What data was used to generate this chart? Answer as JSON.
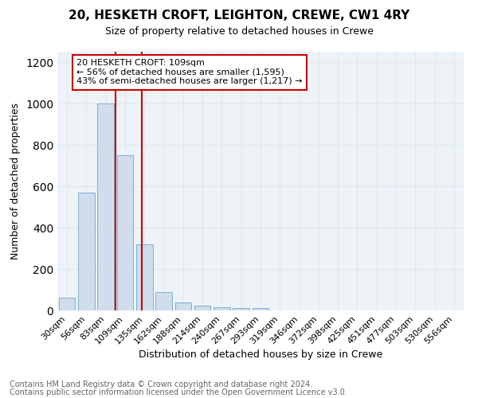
{
  "title": "20, HESKETH CROFT, LEIGHTON, CREWE, CW1 4RY",
  "subtitle": "Size of property relative to detached houses in Crewe",
  "xlabel": "Distribution of detached houses by size in Crewe",
  "ylabel": "Number of detached properties",
  "categories": [
    "30sqm",
    "56sqm",
    "83sqm",
    "109sqm",
    "135sqm",
    "162sqm",
    "188sqm",
    "214sqm",
    "240sqm",
    "267sqm",
    "293sqm",
    "319sqm",
    "346sqm",
    "372sqm",
    "398sqm",
    "425sqm",
    "451sqm",
    "477sqm",
    "503sqm",
    "530sqm",
    "556sqm"
  ],
  "values": [
    60,
    570,
    1000,
    750,
    320,
    90,
    40,
    25,
    15,
    10,
    10,
    0,
    0,
    0,
    0,
    0,
    0,
    0,
    0,
    0,
    0
  ],
  "bar_color": "#cfdded",
  "bar_edge_color": "#7aafd4",
  "red_line_x": 3.0,
  "annotation_text": "20 HESKETH CROFT: 109sqm\n← 56% of detached houses are smaller (1,595)\n43% of semi-detached houses are larger (1,217) →",
  "ylim": [
    0,
    1250
  ],
  "yticks": [
    0,
    200,
    400,
    600,
    800,
    1000,
    1200
  ],
  "footer_line1": "Contains HM Land Registry data © Crown copyright and database right 2024.",
  "footer_line2": "Contains public sector information licensed under the Open Government Licence v3.0.",
  "grid_color": "#dce8f0",
  "background_color": "#eef3f8",
  "title_fontsize": 11,
  "subtitle_fontsize": 9,
  "annotation_box_facecolor": "#ffffff",
  "annotation_box_edgecolor": "#cc0000",
  "red_line_color": "#cc0000",
  "ylabel_fontsize": 9,
  "xlabel_fontsize": 9,
  "tick_fontsize": 8,
  "footer_fontsize": 7,
  "footer_color": "#666666"
}
